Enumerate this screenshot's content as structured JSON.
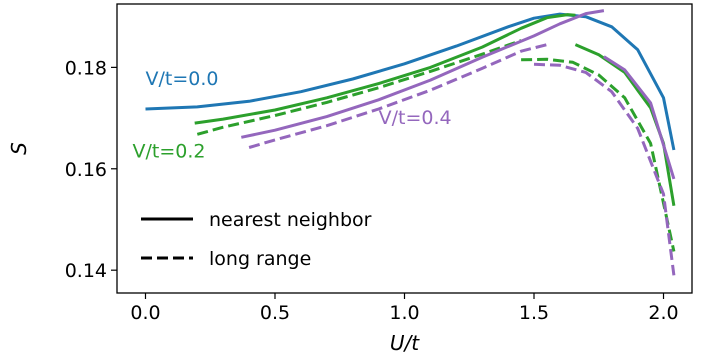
{
  "chart_data": {
    "type": "line",
    "xlabel": "U/t",
    "ylabel": "S",
    "xlim": [
      -0.11,
      2.11
    ],
    "ylim": [
      0.1355,
      0.1925
    ],
    "xticks": [
      0.0,
      0.5,
      1.0,
      1.5,
      2.0
    ],
    "xtick_labels": [
      "0.0",
      "0.5",
      "1.0",
      "1.5",
      "2.0"
    ],
    "yticks": [
      0.14,
      0.16,
      0.18
    ],
    "ytick_labels": [
      "0.14",
      "0.16",
      "0.18"
    ],
    "grid": false,
    "legend": {
      "placement": "lower-left",
      "entries": [
        {
          "label": "nearest neighbor",
          "style": "solid"
        },
        {
          "label": "long range",
          "style": "dashed"
        }
      ]
    },
    "annotations": [
      {
        "text": "V/t=0.0",
        "color": "#1f77b4",
        "x": 0.0,
        "y": 0.1765
      },
      {
        "text": "V/t=0.2",
        "color": "#2ca02c",
        "x": -0.05,
        "y": 0.1622
      },
      {
        "text": "V/t=0.4",
        "color": "#9467bd",
        "x": 0.9,
        "y": 0.1688
      }
    ],
    "series": [
      {
        "color": "#1f77b4",
        "style": "solid",
        "segments": [
          [
            [
              0.0,
              0.1718
            ],
            [
              0.2,
              0.1722
            ],
            [
              0.4,
              0.1733
            ],
            [
              0.6,
              0.1752
            ],
            [
              0.8,
              0.1777
            ],
            [
              1.0,
              0.1807
            ],
            [
              1.2,
              0.1842
            ],
            [
              1.4,
              0.188
            ],
            [
              1.5,
              0.1897
            ],
            [
              1.6,
              0.1905
            ],
            [
              1.7,
              0.19
            ],
            [
              1.8,
              0.188
            ],
            [
              1.9,
              0.1835
            ],
            [
              2.0,
              0.174
            ],
            [
              2.04,
              0.1637
            ]
          ]
        ]
      },
      {
        "color": "#2ca02c",
        "style": "solid",
        "segments": [
          [
            [
              0.19,
              0.169
            ],
            [
              0.3,
              0.1698
            ],
            [
              0.5,
              0.1716
            ],
            [
              0.7,
              0.174
            ],
            [
              0.9,
              0.1768
            ],
            [
              1.1,
              0.18
            ],
            [
              1.3,
              0.184
            ],
            [
              1.45,
              0.1877
            ],
            [
              1.55,
              0.1898
            ],
            [
              1.63,
              0.1904
            ],
            [
              1.66,
              0.1903
            ]
          ],
          [
            [
              1.66,
              0.1845
            ],
            [
              1.75,
              0.1825
            ],
            [
              1.85,
              0.179
            ],
            [
              1.95,
              0.172
            ],
            [
              2.0,
              0.165
            ],
            [
              2.04,
              0.1527
            ]
          ]
        ]
      },
      {
        "color": "#2ca02c",
        "style": "dashed",
        "segments": [
          [
            [
              0.2,
              0.1668
            ],
            [
              0.3,
              0.1682
            ],
            [
              0.5,
              0.1705
            ],
            [
              0.7,
              0.1731
            ],
            [
              0.9,
              0.176
            ],
            [
              1.1,
              0.1792
            ],
            [
              1.3,
              0.1826
            ],
            [
              1.45,
              0.1853
            ]
          ],
          [
            [
              1.45,
              0.1815
            ],
            [
              1.55,
              0.1816
            ],
            [
              1.65,
              0.181
            ],
            [
              1.75,
              0.1785
            ],
            [
              1.85,
              0.174
            ],
            [
              1.95,
              0.165
            ],
            [
              2.04,
              0.1437
            ]
          ]
        ]
      },
      {
        "color": "#9467bd",
        "style": "solid",
        "segments": [
          [
            [
              0.37,
              0.1662
            ],
            [
              0.5,
              0.1676
            ],
            [
              0.7,
              0.1703
            ],
            [
              0.9,
              0.1736
            ],
            [
              1.1,
              0.1775
            ],
            [
              1.3,
              0.182
            ],
            [
              1.5,
              0.1862
            ],
            [
              1.6,
              0.1886
            ],
            [
              1.7,
              0.1906
            ],
            [
              1.77,
              0.1912
            ]
          ],
          [
            [
              1.77,
              0.1821
            ],
            [
              1.85,
              0.1795
            ],
            [
              1.95,
              0.173
            ],
            [
              2.04,
              0.158
            ]
          ]
        ]
      },
      {
        "color": "#9467bd",
        "style": "dashed",
        "segments": [
          [
            [
              0.4,
              0.1642
            ],
            [
              0.5,
              0.1657
            ],
            [
              0.7,
              0.1685
            ],
            [
              0.9,
              0.1718
            ],
            [
              1.1,
              0.1755
            ],
            [
              1.3,
              0.1798
            ],
            [
              1.45,
              0.1832
            ],
            [
              1.55,
              0.1845
            ]
          ],
          [
            [
              1.5,
              0.1806
            ],
            [
              1.6,
              0.1804
            ],
            [
              1.7,
              0.179
            ],
            [
              1.8,
              0.1752
            ],
            [
              1.9,
              0.168
            ],
            [
              2.0,
              0.155
            ],
            [
              2.04,
              0.139
            ]
          ]
        ]
      }
    ]
  }
}
